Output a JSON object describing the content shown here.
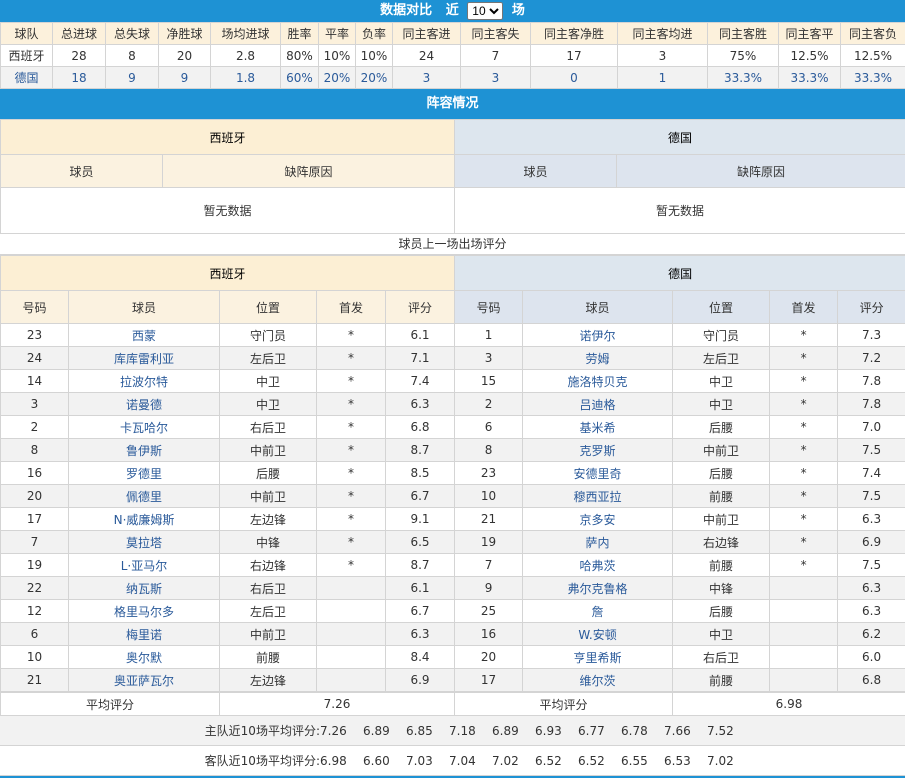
{
  "stats": {
    "title": "数据对比",
    "recent_prefix": "近",
    "recent_value": "10",
    "recent_suffix": "场",
    "headers": [
      "球队",
      "总进球",
      "总失球",
      "净胜球",
      "场均进球",
      "胜率",
      "平率",
      "负率",
      "同主客进",
      "同主客失",
      "同主客净胜",
      "同主客均进",
      "同主客胜",
      "同主客平",
      "同主客负"
    ],
    "rows": [
      [
        "西班牙",
        "28",
        "8",
        "20",
        "2.8",
        "80%",
        "10%",
        "10%",
        "24",
        "7",
        "17",
        "3",
        "75%",
        "12.5%",
        "12.5%"
      ],
      [
        "德国",
        "18",
        "9",
        "9",
        "1.8",
        "60%",
        "20%",
        "20%",
        "3",
        "3",
        "0",
        "1",
        "33.3%",
        "33.3%",
        "33.3%"
      ]
    ]
  },
  "lineup": {
    "title": "阵容情况",
    "home_team": "西班牙",
    "away_team": "德国",
    "col_player": "球员",
    "col_reason": "缺阵原因",
    "home_nodata": "暂无数据",
    "away_nodata": "暂无数据"
  },
  "ratings": {
    "caption": "球员上一场出场评分",
    "home_team": "西班牙",
    "away_team": "德国",
    "columns": [
      "号码",
      "球员",
      "位置",
      "首发",
      "评分"
    ],
    "home": [
      [
        "23",
        "西蒙",
        "守门员",
        "*",
        "6.1"
      ],
      [
        "24",
        "库库雷利亚",
        "左后卫",
        "*",
        "7.1"
      ],
      [
        "14",
        "拉波尔特",
        "中卫",
        "*",
        "7.4"
      ],
      [
        "3",
        "诺曼德",
        "中卫",
        "*",
        "6.3"
      ],
      [
        "2",
        "卡瓦哈尔",
        "右后卫",
        "*",
        "6.8"
      ],
      [
        "8",
        "鲁伊斯",
        "中前卫",
        "*",
        "8.7"
      ],
      [
        "16",
        "罗德里",
        "后腰",
        "*",
        "8.5"
      ],
      [
        "20",
        "佩德里",
        "中前卫",
        "*",
        "6.7"
      ],
      [
        "17",
        "N·威廉姆斯",
        "左边锋",
        "*",
        "9.1"
      ],
      [
        "7",
        "莫拉塔",
        "中锋",
        "*",
        "6.5"
      ],
      [
        "19",
        "L·亚马尔",
        "右边锋",
        "*",
        "8.7"
      ],
      [
        "22",
        "纳瓦斯",
        "右后卫",
        "",
        "6.1"
      ],
      [
        "12",
        "格里马尔多",
        "左后卫",
        "",
        "6.7"
      ],
      [
        "6",
        "梅里诺",
        "中前卫",
        "",
        "6.3"
      ],
      [
        "10",
        "奥尔默",
        "前腰",
        "",
        "8.4"
      ],
      [
        "21",
        "奥亚萨瓦尔",
        "左边锋",
        "",
        "6.9"
      ]
    ],
    "away": [
      [
        "1",
        "诺伊尔",
        "守门员",
        "*",
        "7.3"
      ],
      [
        "3",
        "劳姆",
        "左后卫",
        "*",
        "7.2"
      ],
      [
        "15",
        "施洛特贝克",
        "中卫",
        "*",
        "7.8"
      ],
      [
        "2",
        "吕迪格",
        "中卫",
        "*",
        "7.8"
      ],
      [
        "6",
        "基米希",
        "后腰",
        "*",
        "7.0"
      ],
      [
        "8",
        "克罗斯",
        "中前卫",
        "*",
        "7.5"
      ],
      [
        "23",
        "安德里奇",
        "后腰",
        "*",
        "7.4"
      ],
      [
        "10",
        "穆西亚拉",
        "前腰",
        "*",
        "7.5"
      ],
      [
        "21",
        "京多安",
        "中前卫",
        "*",
        "6.3"
      ],
      [
        "19",
        "萨内",
        "右边锋",
        "*",
        "6.9"
      ],
      [
        "7",
        "哈弗茨",
        "前腰",
        "*",
        "7.5"
      ],
      [
        "9",
        "弗尔克鲁格",
        "中锋",
        "",
        "6.3"
      ],
      [
        "25",
        "詹",
        "后腰",
        "",
        "6.3"
      ],
      [
        "16",
        "W.安顿",
        "中卫",
        "",
        "6.2"
      ],
      [
        "20",
        "亨里希斯",
        "右后卫",
        "",
        "6.0"
      ],
      [
        "17",
        "维尔茨",
        "前腰",
        "",
        "6.8"
      ]
    ],
    "avg_label": "平均评分",
    "home_avg": "7.26",
    "away_avg": "6.98",
    "home_trend_label": "主队近10场平均评分:",
    "home_trend": [
      "7.26",
      "6.89",
      "6.85",
      "7.18",
      "6.89",
      "6.93",
      "6.77",
      "6.78",
      "7.66",
      "7.52"
    ],
    "away_trend_label": "客队近10场平均评分:",
    "away_trend": [
      "6.98",
      "6.60",
      "7.03",
      "7.04",
      "7.02",
      "6.52",
      "6.52",
      "6.55",
      "6.53",
      "7.02"
    ]
  },
  "colors": {
    "header_blue": "#1e92d4",
    "home_bg": "#fcefd4",
    "away_bg": "#dde6ee",
    "link": "#2a5a9a"
  }
}
